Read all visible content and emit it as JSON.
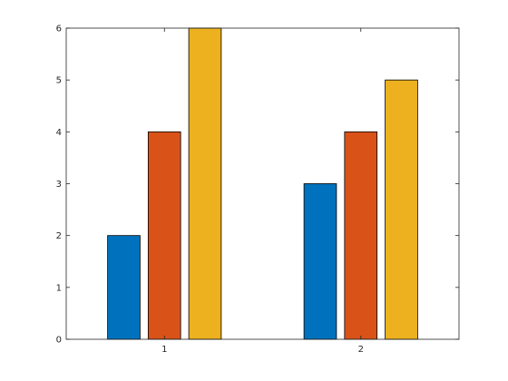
{
  "chart_data": {
    "type": "bar",
    "categories": [
      "1",
      "2"
    ],
    "series": [
      {
        "values": [
          2,
          3
        ],
        "color": "#0072BD"
      },
      {
        "values": [
          4,
          4
        ],
        "color": "#D95319"
      },
      {
        "values": [
          6,
          5
        ],
        "color": "#EDB120"
      }
    ],
    "title": "",
    "xlabel": "",
    "ylabel": "",
    "ylim": [
      0,
      6
    ],
    "yticks": [
      "0",
      "1",
      "2",
      "3",
      "4",
      "5",
      "6"
    ],
    "grid": false,
    "legend": "none"
  }
}
